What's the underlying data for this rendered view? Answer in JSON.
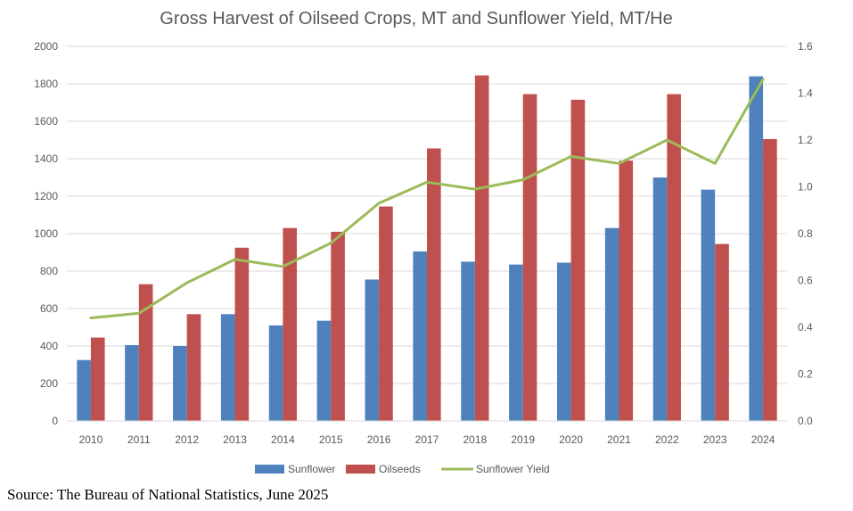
{
  "chart_data": {
    "type": "bar",
    "title": "Gross Harvest of Oilseed Crops, MT and Sunflower Yield, MT/He",
    "categories": [
      "2010",
      "2011",
      "2012",
      "2013",
      "2014",
      "2015",
      "2016",
      "2017",
      "2018",
      "2019",
      "2020",
      "2021",
      "2022",
      "2023",
      "2024"
    ],
    "series": [
      {
        "name": "Sunflower",
        "kind": "bar",
        "axis": "left",
        "color": "#4f81bd",
        "values": [
          325,
          405,
          400,
          570,
          510,
          535,
          755,
          905,
          850,
          835,
          845,
          1030,
          1300,
          1235,
          1840
        ]
      },
      {
        "name": "Oilseeds",
        "kind": "bar",
        "axis": "left",
        "color": "#c0504d",
        "values": [
          445,
          730,
          570,
          925,
          1030,
          1010,
          1145,
          1455,
          1845,
          1745,
          1715,
          1390,
          1745,
          945,
          1505
        ]
      },
      {
        "name": "Sunflower Yield",
        "kind": "line",
        "axis": "right",
        "color": "#9bbb59",
        "values": [
          0.44,
          0.46,
          0.59,
          0.69,
          0.66,
          0.76,
          0.93,
          1.02,
          0.99,
          1.03,
          1.13,
          1.1,
          1.2,
          1.1,
          1.46
        ]
      }
    ],
    "y_left": {
      "ylim": [
        0,
        2000
      ],
      "ticks": [
        0,
        200,
        400,
        600,
        800,
        1000,
        1200,
        1400,
        1600,
        1800,
        2000
      ],
      "tick_labels": [
        "0",
        "200",
        "400",
        "600",
        "800",
        "1000",
        "1200",
        "1400",
        "1600",
        "1800",
        "2000"
      ]
    },
    "y_right": {
      "ylim": [
        0,
        1.6
      ],
      "ticks": [
        0,
        0.2,
        0.4,
        0.6,
        0.8,
        1.0,
        1.2,
        1.4,
        1.6
      ],
      "tick_labels": [
        "0.0",
        "0.2",
        "0.4",
        "0.6",
        "0.8",
        "1.0",
        "1.2",
        "1.4",
        "1.6"
      ]
    },
    "xlabel": "",
    "ylabel": "",
    "grid": true,
    "legend": "bottom"
  },
  "source": "Source: The Bureau of National Statistics, June 2025"
}
